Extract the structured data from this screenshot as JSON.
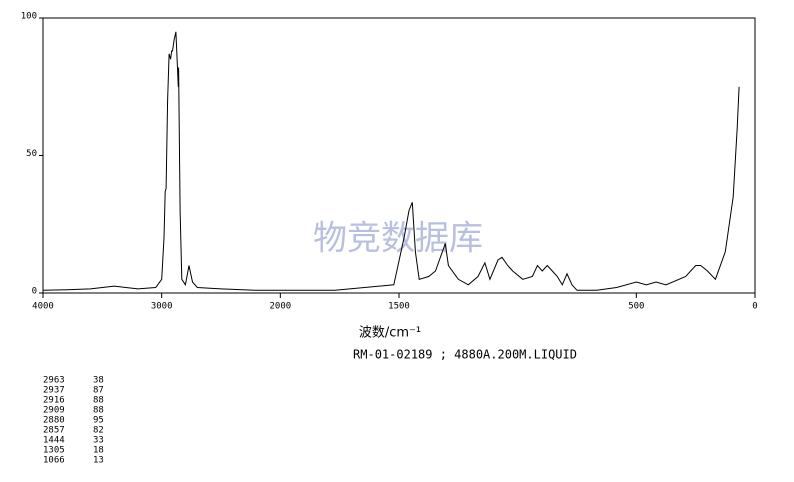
{
  "chart_data": {
    "type": "line",
    "xlabel": "波数/cm⁻¹",
    "subtitle": "RM-01-02189 ; 4880A.200M.LIQUID",
    "watermark": "物竞数据库",
    "xlim": [
      4000,
      0
    ],
    "ylim": [
      0,
      100
    ],
    "xscale": {
      "break": 2000,
      "factor": 2
    },
    "xticks": [
      4000,
      3000,
      2000,
      1500,
      500,
      0
    ],
    "yticks": [
      0,
      50,
      100
    ],
    "series": [
      {
        "color": "#000000",
        "x": [
          4000,
          3800,
          3600,
          3400,
          3200,
          3050,
          3000,
          2980,
          2970,
          2963,
          2950,
          2937,
          2925,
          2916,
          2909,
          2895,
          2880,
          2870,
          2860,
          2857,
          2845,
          2830,
          2800,
          2770,
          2740,
          2700,
          2500,
          2200,
          2000,
          1770,
          1522,
          1479,
          1458,
          1444,
          1431,
          1415,
          1375,
          1346,
          1305,
          1292,
          1250,
          1208,
          1167,
          1138,
          1117,
          1083,
          1066,
          1042,
          1021,
          979,
          938,
          917,
          896,
          875,
          854,
          833,
          812,
          792,
          771,
          750,
          667,
          583,
          500,
          458,
          417,
          375,
          292,
          250,
          229,
          200,
          167,
          125,
          92,
          75,
          67
        ],
        "values": [
          1,
          1.2,
          1.5,
          2.5,
          1.5,
          2,
          5,
          20,
          37,
          38,
          70,
          87,
          85,
          88,
          88,
          92,
          95,
          85,
          75,
          82,
          30,
          5,
          3,
          10,
          4,
          2,
          1.5,
          1,
          1,
          1,
          3,
          20,
          30,
          33,
          15,
          5,
          6,
          8,
          18,
          10,
          5,
          3,
          6,
          11,
          5,
          12,
          13,
          10,
          8,
          5,
          6,
          10,
          8,
          10,
          8,
          6,
          3,
          7,
          3,
          1,
          1,
          2,
          4,
          3,
          4,
          3,
          6,
          10,
          10,
          8,
          5,
          15,
          35,
          60,
          75
        ]
      }
    ],
    "peaks": [
      [
        2963,
        38
      ],
      [
        2937,
        87
      ],
      [
        2916,
        88
      ],
      [
        2909,
        88
      ],
      [
        2880,
        95
      ],
      [
        2857,
        82
      ],
      [
        1444,
        33
      ],
      [
        1305,
        18
      ],
      [
        1066,
        13
      ]
    ]
  }
}
